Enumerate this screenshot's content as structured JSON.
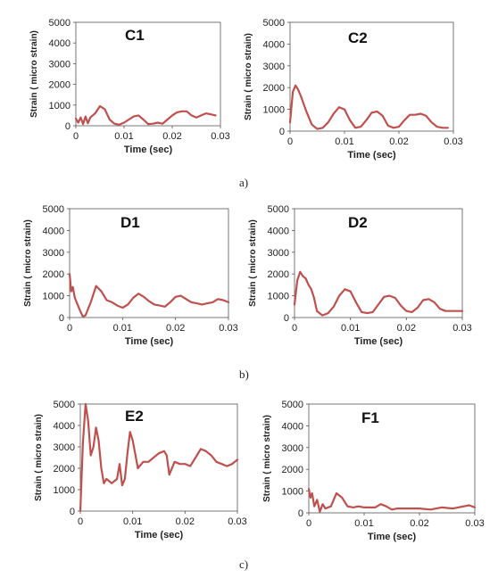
{
  "captions": [
    "a)",
    "b)",
    "c)"
  ],
  "chart_data": [
    {
      "type": "line",
      "title": "C1",
      "xlabel": "Time (sec)",
      "ylabel": "Strain ( micro strain)",
      "xlim": [
        0,
        0.03
      ],
      "ylim": [
        0,
        5000
      ],
      "xticks": [
        "0",
        "0.01",
        "0.02",
        "0.03"
      ],
      "yticks": [
        "0",
        "1000",
        "2000",
        "3000",
        "4000",
        "5000"
      ],
      "grid": false,
      "line_color": "#c0504d",
      "series": [
        {
          "x": [
            0,
            0.0005,
            0.001,
            0.0015,
            0.002,
            0.0025,
            0.003,
            0.004,
            0.005,
            0.006,
            0.007,
            0.008,
            0.009,
            0.01,
            0.011,
            0.012,
            0.013,
            0.014,
            0.015,
            0.016,
            0.017,
            0.018,
            0.019,
            0.02,
            0.021,
            0.022,
            0.023,
            0.024,
            0.025,
            0.026,
            0.027,
            0.028,
            0.029
          ],
          "y": [
            350,
            150,
            400,
            80,
            450,
            120,
            400,
            600,
            950,
            800,
            300,
            100,
            50,
            150,
            300,
            450,
            500,
            300,
            80,
            100,
            150,
            100,
            300,
            500,
            650,
            700,
            700,
            500,
            400,
            500,
            600,
            550,
            500
          ]
        }
      ]
    },
    {
      "type": "line",
      "title": "C2",
      "xlabel": "Time (sec)",
      "ylabel": "Strain ( micro strain)",
      "xlim": [
        0,
        0.03
      ],
      "ylim": [
        0,
        5000
      ],
      "xticks": [
        "0",
        "0.01",
        "0.02",
        "0.03"
      ],
      "yticks": [
        "0",
        "1000",
        "2000",
        "3000",
        "4000",
        "5000"
      ],
      "grid": false,
      "line_color": "#c0504d",
      "series": [
        {
          "x": [
            0,
            0.0005,
            0.001,
            0.0015,
            0.002,
            0.003,
            0.004,
            0.005,
            0.006,
            0.007,
            0.008,
            0.009,
            0.01,
            0.011,
            0.012,
            0.013,
            0.014,
            0.015,
            0.016,
            0.017,
            0.018,
            0.019,
            0.02,
            0.021,
            0.022,
            0.023,
            0.024,
            0.025,
            0.026,
            0.027,
            0.028,
            0.029
          ],
          "y": [
            400,
            1800,
            2100,
            1900,
            1600,
            900,
            300,
            100,
            150,
            400,
            800,
            1100,
            1000,
            500,
            150,
            200,
            500,
            850,
            900,
            700,
            250,
            150,
            200,
            500,
            750,
            750,
            800,
            700,
            400,
            200,
            150,
            150
          ]
        }
      ]
    },
    {
      "type": "line",
      "title": "D1",
      "xlabel": "Time (sec)",
      "ylabel": "Strain ( micro strain)",
      "xlim": [
        0,
        0.03
      ],
      "ylim": [
        0,
        5000
      ],
      "xticks": [
        "0",
        "0.01",
        "0.02",
        "0.03"
      ],
      "yticks": [
        "0",
        "1000",
        "2000",
        "3000",
        "4000",
        "5000"
      ],
      "grid": false,
      "line_color": "#c0504d",
      "series": [
        {
          "x": [
            0,
            0.0003,
            0.0006,
            0.001,
            0.0015,
            0.002,
            0.0025,
            0.003,
            0.004,
            0.005,
            0.006,
            0.007,
            0.008,
            0.009,
            0.01,
            0.011,
            0.012,
            0.013,
            0.014,
            0.015,
            0.016,
            0.017,
            0.018,
            0.019,
            0.02,
            0.021,
            0.022,
            0.023,
            0.024,
            0.025,
            0.026,
            0.027,
            0.028,
            0.029,
            0.03
          ],
          "y": [
            2000,
            1200,
            1400,
            900,
            600,
            300,
            50,
            100,
            700,
            1450,
            1200,
            800,
            700,
            550,
            450,
            600,
            900,
            1100,
            950,
            750,
            600,
            550,
            500,
            700,
            950,
            1000,
            850,
            700,
            650,
            600,
            650,
            700,
            850,
            800,
            700
          ]
        }
      ]
    },
    {
      "type": "line",
      "title": "D2",
      "xlabel": "Time (sec)",
      "ylabel": "Strain ( micro strain)",
      "xlim": [
        0,
        0.03
      ],
      "ylim": [
        0,
        5000
      ],
      "xticks": [
        "0",
        "0.01",
        "0.02",
        "0.03"
      ],
      "yticks": [
        "0",
        "1000",
        "2000",
        "3000",
        "4000",
        "5000"
      ],
      "grid": false,
      "line_color": "#c0504d",
      "series": [
        {
          "x": [
            0,
            0.0005,
            0.001,
            0.0015,
            0.002,
            0.0025,
            0.003,
            0.0035,
            0.004,
            0.005,
            0.006,
            0.007,
            0.008,
            0.009,
            0.01,
            0.011,
            0.012,
            0.013,
            0.014,
            0.015,
            0.016,
            0.017,
            0.018,
            0.019,
            0.02,
            0.021,
            0.022,
            0.023,
            0.024,
            0.025,
            0.026,
            0.027,
            0.028,
            0.029,
            0.03
          ],
          "y": [
            600,
            1700,
            2100,
            1900,
            1800,
            1500,
            1300,
            900,
            300,
            100,
            200,
            500,
            1000,
            1300,
            1200,
            700,
            250,
            200,
            250,
            600,
            950,
            1000,
            900,
            550,
            300,
            250,
            450,
            800,
            850,
            700,
            400,
            300,
            300,
            300,
            300
          ]
        }
      ]
    },
    {
      "type": "line",
      "title": "E2",
      "xlabel": "Time (sec)",
      "ylabel": "Strain ( micro strain)",
      "xlim": [
        0,
        0.03
      ],
      "ylim": [
        0,
        5000
      ],
      "xticks": [
        "0",
        "0.01",
        "0.02",
        "0.03"
      ],
      "yticks": [
        "0",
        "1000",
        "2000",
        "3000",
        "4000",
        "5000"
      ],
      "grid": false,
      "line_color": "#c0504d",
      "series": [
        {
          "x": [
            0,
            0.0005,
            0.001,
            0.0015,
            0.002,
            0.0025,
            0.003,
            0.0035,
            0.004,
            0.0045,
            0.005,
            0.006,
            0.007,
            0.0075,
            0.008,
            0.0085,
            0.009,
            0.0095,
            0.01,
            0.011,
            0.012,
            0.013,
            0.014,
            0.015,
            0.016,
            0.0165,
            0.017,
            0.018,
            0.019,
            0.02,
            0.021,
            0.022,
            0.023,
            0.024,
            0.025,
            0.026,
            0.027,
            0.028,
            0.029,
            0.03
          ],
          "y": [
            0,
            3200,
            5000,
            4200,
            2600,
            3000,
            3900,
            3300,
            2000,
            1300,
            1500,
            1300,
            1500,
            2200,
            1200,
            1500,
            2700,
            3700,
            3300,
            2000,
            2300,
            2300,
            2500,
            2700,
            2800,
            2600,
            1700,
            2300,
            2200,
            2200,
            2100,
            2500,
            2900,
            2800,
            2600,
            2300,
            2200,
            2100,
            2200,
            2400
          ]
        }
      ]
    },
    {
      "type": "line",
      "title": "F1",
      "xlabel": "Time (sec)",
      "ylabel": "Strain ( micro strain)",
      "xlim": [
        0,
        0.03
      ],
      "ylim": [
        0,
        5000
      ],
      "xticks": [
        "0",
        "0.01",
        "0.02",
        "0.03"
      ],
      "yticks": [
        "0",
        "1000",
        "2000",
        "3000",
        "4000",
        "5000"
      ],
      "grid": false,
      "line_color": "#c0504d",
      "series": [
        {
          "x": [
            0,
            0.0003,
            0.0006,
            0.001,
            0.0015,
            0.002,
            0.0025,
            0.003,
            0.004,
            0.005,
            0.006,
            0.007,
            0.008,
            0.009,
            0.01,
            0.011,
            0.012,
            0.013,
            0.014,
            0.015,
            0.016,
            0.018,
            0.02,
            0.022,
            0.024,
            0.026,
            0.028,
            0.029,
            0.03
          ],
          "y": [
            1100,
            700,
            900,
            300,
            600,
            50,
            400,
            200,
            300,
            900,
            700,
            300,
            250,
            300,
            250,
            250,
            250,
            400,
            300,
            150,
            200,
            200,
            200,
            150,
            250,
            200,
            300,
            350,
            250
          ]
        }
      ]
    }
  ]
}
